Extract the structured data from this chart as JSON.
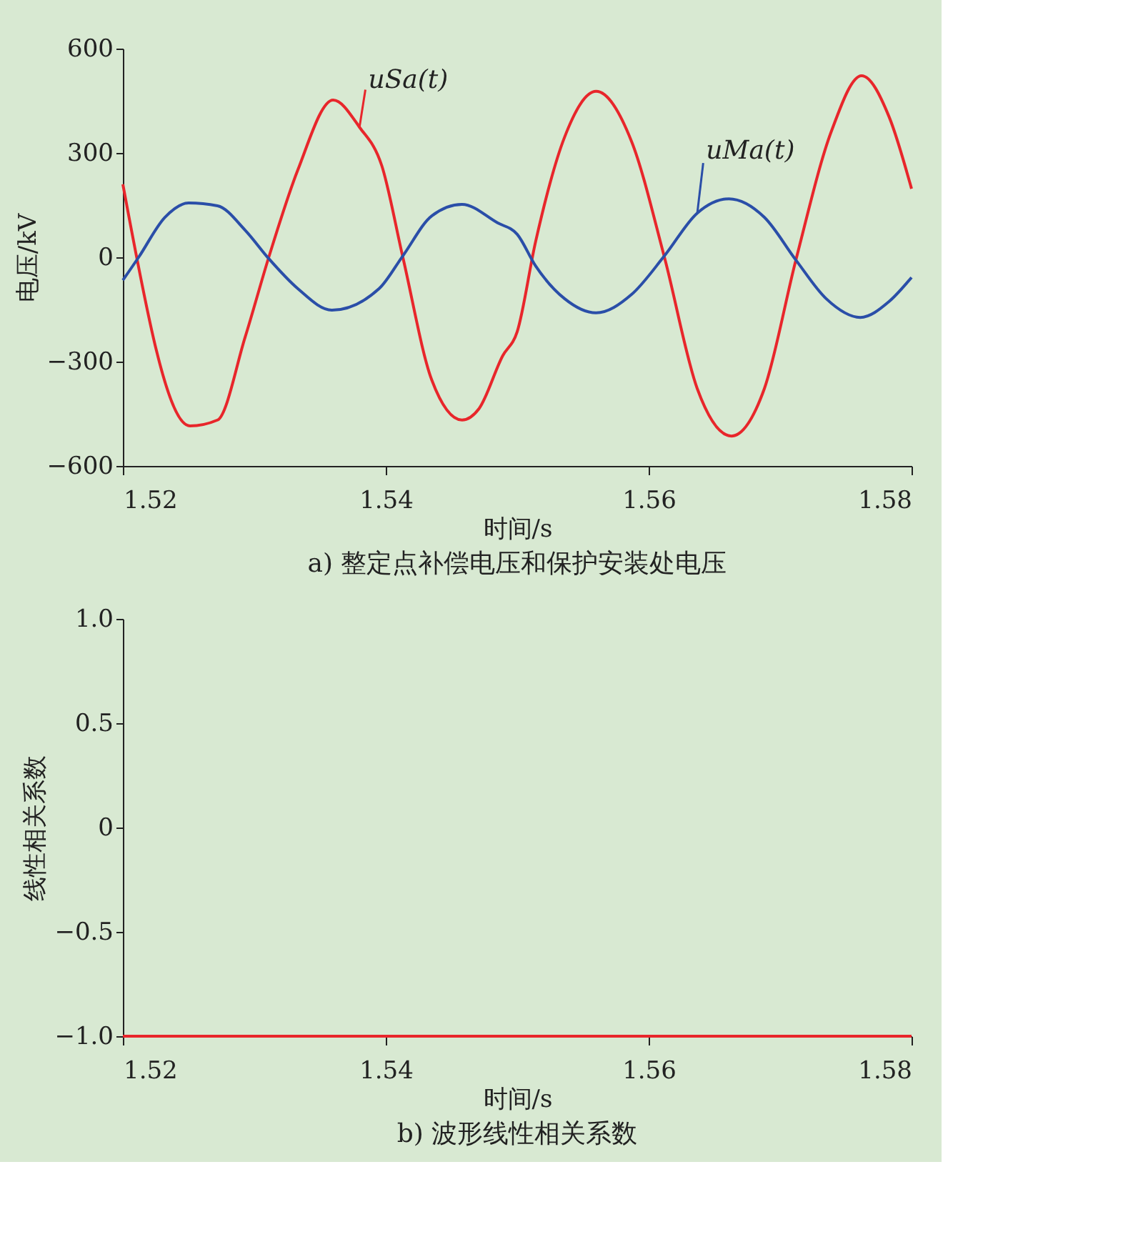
{
  "chart_data": [
    {
      "type": "line",
      "title": "a) 整定点补偿电压和保护安装处电压",
      "xlabel": "时间/s",
      "ylabel": "电压/kV",
      "xlim": [
        1.52,
        1.58
      ],
      "xticks": [
        1.52,
        1.54,
        1.56,
        1.58
      ],
      "ylim": [
        -600,
        600
      ],
      "yticks": [
        {
          "value": -600,
          "label": "−600"
        },
        {
          "value": -300,
          "label": "−300"
        },
        0,
        300,
        600
      ],
      "grid": false,
      "legend": false,
      "marker": "none",
      "line_style": "solid",
      "series": [
        {
          "name": "uSa(t)",
          "color": "#e8262b",
          "x": [
            1.52,
            1.5251,
            1.5272,
            1.5293,
            1.5311,
            1.5333,
            1.536,
            1.538,
            1.5397,
            1.5413,
            1.5435,
            1.5458,
            1.5471,
            1.5489,
            1.55,
            1.5514,
            1.5536,
            1.556,
            1.5587,
            1.5612,
            1.5637,
            1.5663,
            1.5688,
            1.5712,
            1.5739,
            1.5762,
            1.5783,
            1.58
          ],
          "values": [
            210,
            -485,
            -468,
            -230,
            0,
            250,
            452,
            374,
            263,
            0,
            -353,
            -468,
            -435,
            -283,
            -214,
            45,
            345,
            477,
            333,
            0,
            -378,
            -514,
            -378,
            -8,
            362,
            522,
            403,
            197
          ]
        },
        {
          "name": "uMa(t)",
          "color": "#2a4ea8",
          "x": [
            1.52,
            1.5212,
            1.5232,
            1.525,
            1.5272,
            1.5293,
            1.5311,
            1.5333,
            1.5359,
            1.5395,
            1.5413,
            1.5435,
            1.5458,
            1.5485,
            1.55,
            1.5514,
            1.5536,
            1.556,
            1.5587,
            1.5612,
            1.5637,
            1.5661,
            1.5688,
            1.5712,
            1.5735,
            1.5761,
            1.5783,
            1.58
          ],
          "values": [
            -66,
            0,
            115,
            156,
            148,
            78,
            -4,
            -90,
            -152,
            -90,
            4,
            119,
            152,
            99,
            66,
            -25,
            -119,
            -160,
            -107,
            4,
            127,
            168,
            115,
            -8,
            -119,
            -173,
            -127,
            -58
          ]
        }
      ]
    },
    {
      "type": "line",
      "title": "b) 波形线性相关系数",
      "xlabel": "时间/s",
      "ylabel": "线性相关系数",
      "xlim": [
        1.52,
        1.58
      ],
      "xticks": [
        1.52,
        1.54,
        1.56,
        1.58
      ],
      "ylim": [
        -1.0,
        1.0
      ],
      "yticks": [
        {
          "value": -1.0,
          "label": "−1.0"
        },
        {
          "value": -0.5,
          "label": "−0.5"
        },
        0,
        {
          "value": 0.5,
          "label": "0.5"
        },
        {
          "value": 1.0,
          "label": "1.0"
        }
      ],
      "grid": false,
      "legend": false,
      "marker": "none",
      "line_style": "solid",
      "series": [
        {
          "color": "#e8262b",
          "x": [
            1.52,
            1.58
          ],
          "values": [
            -1.0,
            -1.0
          ]
        }
      ]
    }
  ]
}
